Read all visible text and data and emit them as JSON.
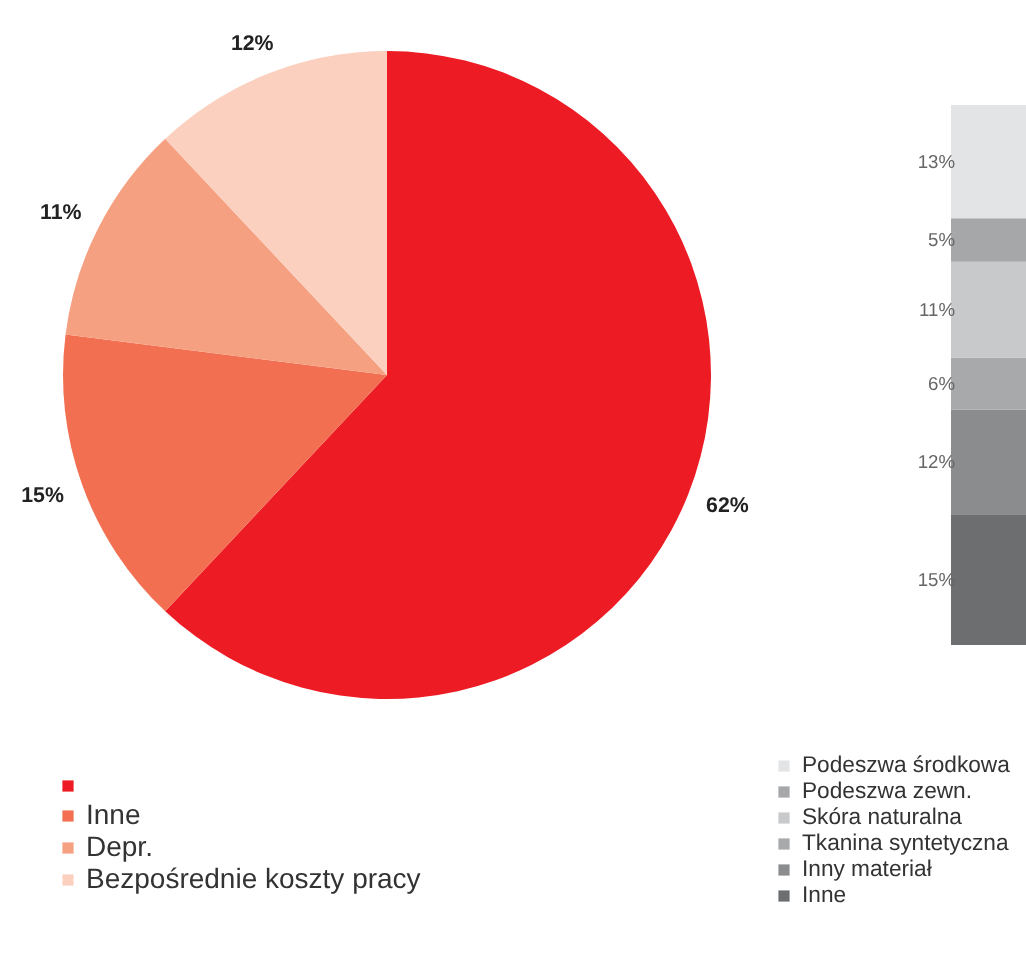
{
  "chart_data": [
    {
      "type": "pie",
      "categories": [
        null,
        "Inne",
        "Depr.",
        "Bezpośrednie koszty pracy"
      ],
      "values": [
        62,
        15,
        11,
        12
      ],
      "colors": [
        "#ed1c24",
        "#f26f52",
        "#f5a081",
        "#fcd0bf"
      ],
      "value_labels": [
        "62%",
        "15%",
        "11%",
        "12%"
      ],
      "legend": "bottom left",
      "tick_labels": false
    },
    {
      "type": "bar",
      "stacked": true,
      "categories": [
        null
      ],
      "legend": "bottom",
      "tick_labels": false,
      "series": [
        {
          "name": "Inne",
          "color": "#6d6e70",
          "values": [
            15
          ],
          "value_labels": [
            "15%"
          ]
        },
        {
          "name": "Inny materiał",
          "color": "#8b8c8e",
          "values": [
            12
          ],
          "value_labels": [
            "12%"
          ]
        },
        {
          "name": "Tkanina syntetyczna",
          "color": "#a8a9ab",
          "values": [
            6
          ],
          "value_labels": [
            "6%"
          ]
        },
        {
          "name": "Skóra naturalna",
          "color": "#c8c9cb",
          "values": [
            11
          ],
          "value_labels": [
            "11%"
          ]
        },
        {
          "name": "Podeszwa zewn.",
          "color": "#a6a7a9",
          "values": [
            5
          ],
          "value_labels": [
            "5%"
          ]
        },
        {
          "name": "Podeszwa środkowa",
          "color": "#e3e4e6",
          "values": [
            13
          ],
          "value_labels": [
            "13%"
          ]
        }
      ]
    }
  ]
}
